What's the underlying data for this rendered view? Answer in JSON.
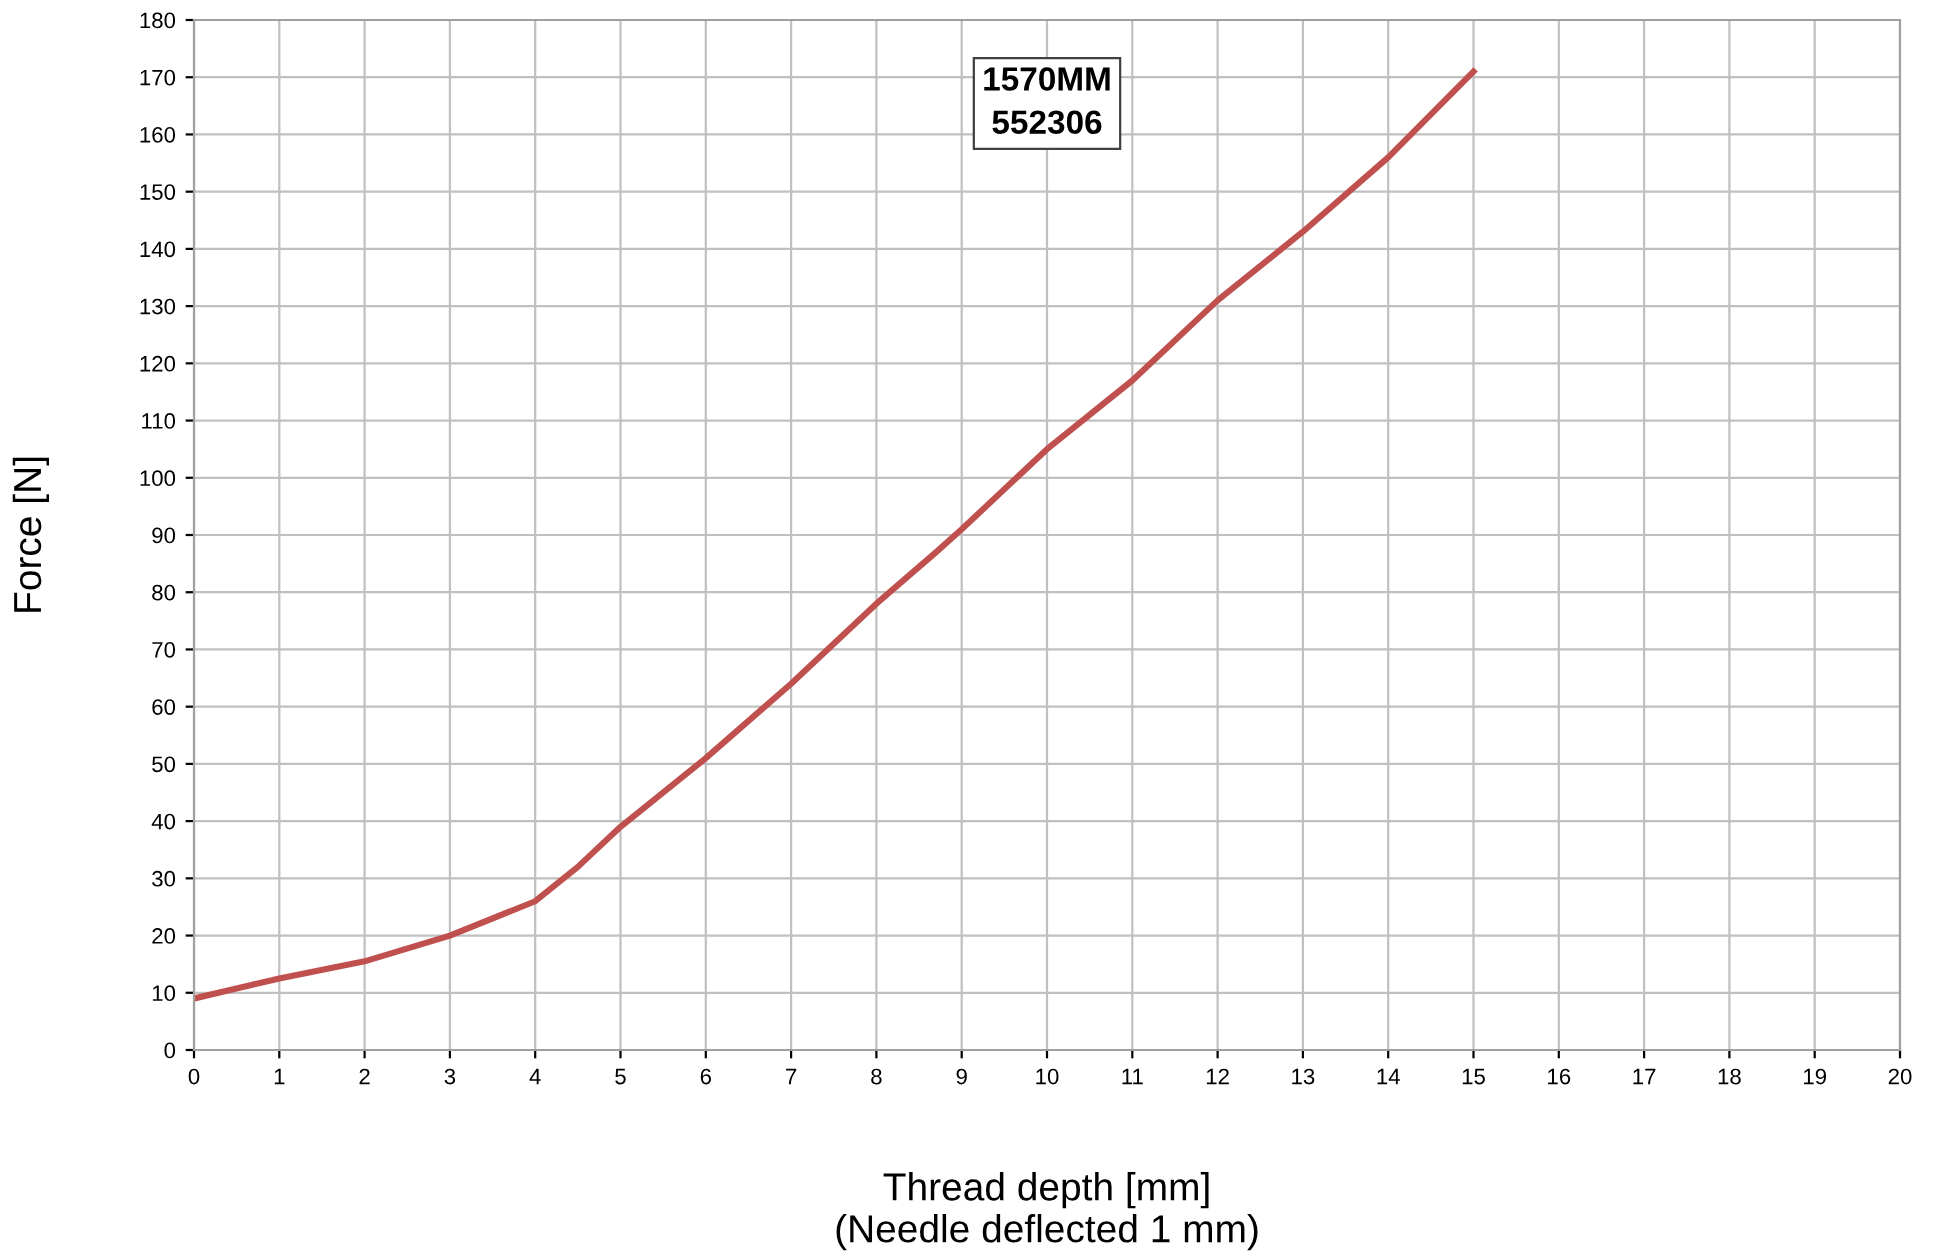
{
  "chart_data": {
    "type": "line",
    "xlabel": "Thread depth [mm]\n(Needle deflected 1 mm)",
    "ylabel": "Force [N]",
    "annotations": [
      "1570MM\n552306"
    ],
    "series": [
      {
        "color": "#c0504d",
        "x": [
          0,
          1,
          2,
          3,
          4,
          4.5,
          5,
          6,
          7,
          8,
          8.7,
          9,
          10,
          11,
          12,
          13,
          14,
          15
        ],
        "values": [
          9,
          12.5,
          15.5,
          20,
          26,
          32,
          39,
          51,
          64,
          78,
          87,
          91,
          105,
          117,
          131,
          143,
          156,
          171
        ]
      }
    ],
    "xlim": [
      0,
      20
    ],
    "xticks": [
      0,
      1,
      2,
      3,
      4,
      5,
      6,
      7,
      8,
      9,
      10,
      11,
      12,
      13,
      14,
      15,
      16,
      17,
      18,
      19,
      20
    ],
    "ylim": [
      0,
      180
    ],
    "yticks": [
      0,
      10,
      20,
      30,
      40,
      50,
      60,
      70,
      80,
      90,
      100,
      110,
      120,
      130,
      140,
      150,
      160,
      170,
      180
    ],
    "grid": true,
    "marker": "none",
    "line_style": "solid",
    "legend": false
  }
}
